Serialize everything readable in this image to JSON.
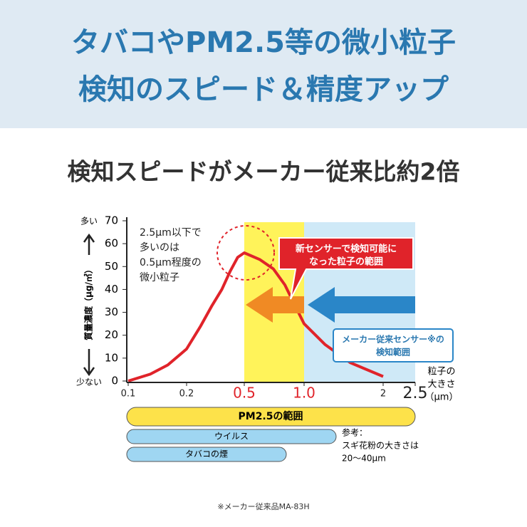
{
  "header": {
    "lines": [
      "タバコやPM2.5等の微小粒子",
      "検知のスピード＆精度アップ"
    ]
  },
  "headline": "検知スピードがメーカー従来比約2倍",
  "chart_data": {
    "type": "line",
    "x": [
      0.1,
      0.13,
      0.16,
      0.2,
      0.25,
      0.3,
      0.35,
      0.4,
      0.45,
      0.5,
      0.6,
      0.7,
      0.8,
      0.9,
      1.0,
      1.2,
      1.5,
      2.0
    ],
    "values": [
      0,
      3,
      7,
      14,
      24,
      33,
      40,
      48,
      54,
      56,
      53,
      49,
      42,
      33,
      25,
      16,
      8,
      2
    ],
    "color": "#e0232a",
    "xlim": [
      0.1,
      2.5
    ],
    "xticks": [
      0.1,
      0.2,
      0.5,
      {
        "value": 1,
        "label": "1.0"
      },
      2,
      2.5
    ],
    "ylim": [
      0,
      70
    ],
    "yticks": [
      0,
      10,
      20,
      30,
      40,
      50,
      60,
      70
    ],
    "ylabel": "質量濃度（μg/㎥）",
    "y_top_label": "多い",
    "y_bottom_label": "少ない",
    "xlabel": [
      "粒子の",
      "大きさ",
      "（μm）"
    ],
    "note": [
      "2.5μm以下で",
      "多いのは",
      "0.5μm程度の",
      "微小粒子"
    ],
    "new_range_label": [
      "新センサーで検知可能に",
      "なった粒子の範囲"
    ],
    "old_range_label": [
      "メーカー従来センサー※の",
      "検知範囲"
    ]
  },
  "size_ranges": {
    "pm25": "PM2.5の範囲",
    "virus": "ウイルス",
    "tobacco": "タバコの煙"
  },
  "reference": [
    "参考：",
    "スギ花粉の大きさは",
    "20〜40μm"
  ],
  "footnote": "※メーカー従来品MA-83H"
}
